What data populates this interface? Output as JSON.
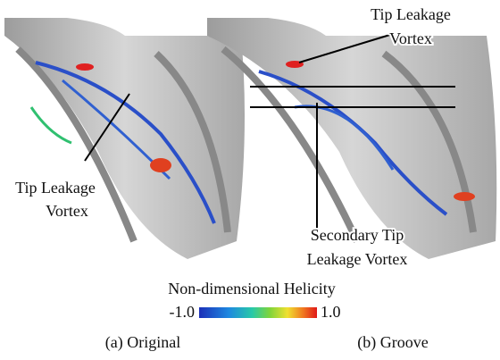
{
  "panels": [
    {
      "caption": "(a) Original",
      "annotations": [
        {
          "lines": [
            "Tip Leakage",
            "Vortex"
          ]
        }
      ]
    },
    {
      "caption": "(b) Groove",
      "annotations": [
        {
          "lines": [
            "Tip Leakage",
            "Vortex"
          ]
        },
        {
          "lines": [
            "Secondary Tip",
            "Leakage Vortex"
          ]
        }
      ]
    }
  ],
  "colorbar": {
    "title": "Non-dimensional Helicity",
    "min_label": "-1.0",
    "max_label": "1.0"
  }
}
